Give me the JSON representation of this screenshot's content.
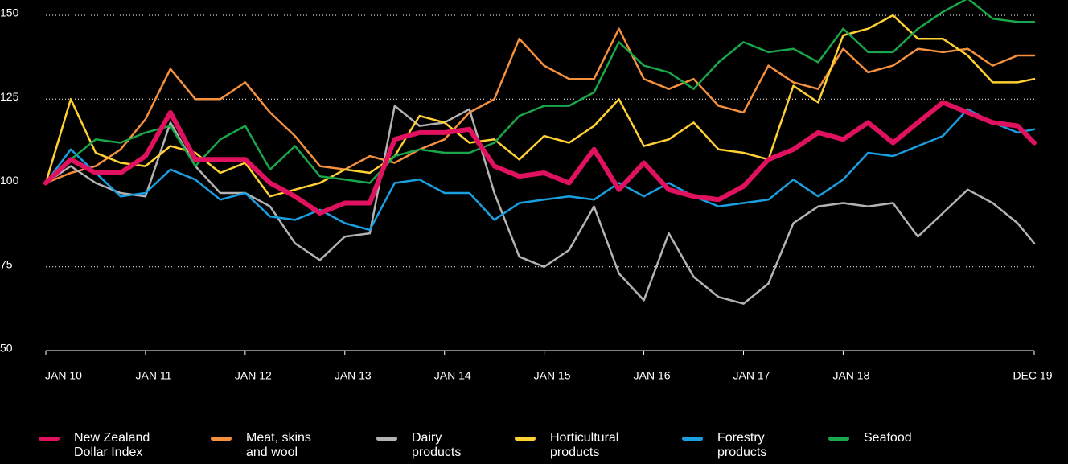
{
  "chart_data": {
    "type": "line",
    "x": [
      2010,
      2010.25,
      2010.5,
      2010.75,
      2011,
      2011.25,
      2011.5,
      2011.75,
      2012,
      2012.25,
      2012.5,
      2012.75,
      2013,
      2013.25,
      2013.5,
      2013.75,
      2014,
      2014.25,
      2014.5,
      2014.75,
      2015,
      2015.25,
      2015.5,
      2015.75,
      2016,
      2016.25,
      2016.5,
      2016.75,
      2017,
      2017.25,
      2017.5,
      2017.75,
      2018,
      2018.25,
      2018.5,
      2018.75,
      2019,
      2019.25,
      2019.5,
      2019.75,
      2019.917
    ],
    "xlim": [
      2010,
      2019.917
    ],
    "xticks": [
      {
        "value": 2010,
        "label": "JAN 10"
      },
      {
        "value": 2011,
        "label": "JAN 11"
      },
      {
        "value": 2012,
        "label": "JAN 12"
      },
      {
        "value": 2013,
        "label": "JAN 13"
      },
      {
        "value": 2014,
        "label": "JAN 14"
      },
      {
        "value": 2015,
        "label": "JAN 15"
      },
      {
        "value": 2016,
        "label": "JAN 16"
      },
      {
        "value": 2017,
        "label": "JAN 17"
      },
      {
        "value": 2018,
        "label": "JAN 18"
      },
      {
        "value": 2019.917,
        "label": "DEC 19"
      }
    ],
    "ylim": [
      50,
      150
    ],
    "yticks": [
      50,
      75,
      100,
      125,
      150
    ],
    "grid": true,
    "series": [
      {
        "name": "Meat, skins and wool",
        "color": "#f5913e",
        "values": [
          100,
          103,
          105,
          110,
          119,
          134,
          125,
          125,
          130,
          121,
          114,
          105,
          104,
          108,
          106,
          110,
          113,
          121,
          125,
          143,
          135,
          131,
          131,
          146,
          131,
          128,
          131,
          123,
          121,
          135,
          130,
          128,
          140,
          133,
          135,
          140,
          139,
          140,
          135,
          138,
          138
        ]
      },
      {
        "name": "Dairy products",
        "color": "#b3b3b3",
        "values": [
          100,
          105,
          100,
          97,
          96,
          118,
          105,
          97,
          97,
          93,
          82,
          77,
          84,
          85,
          123,
          117,
          118,
          122,
          97,
          78,
          75,
          80,
          93,
          73,
          65,
          85,
          72,
          66,
          64,
          70,
          88,
          93,
          94,
          93,
          94,
          84,
          91,
          98,
          94,
          88,
          82
        ]
      },
      {
        "name": "Horticultural products",
        "color": "#ffd133",
        "values": [
          100,
          125,
          109,
          106,
          105,
          111,
          109,
          103,
          106,
          96,
          98,
          100,
          104,
          103,
          108,
          120,
          118,
          112,
          113,
          107,
          114,
          112,
          117,
          125,
          111,
          113,
          118,
          110,
          109,
          107,
          129,
          124,
          144,
          146,
          150,
          143,
          143,
          138,
          130,
          130,
          131
        ]
      },
      {
        "name": "Forestry products",
        "color": "#1a9fe0",
        "values": [
          100,
          110,
          103,
          96,
          97,
          104,
          101,
          95,
          97,
          90,
          89,
          92,
          88,
          86,
          100,
          101,
          97,
          97,
          89,
          94,
          95,
          96,
          95,
          100,
          96,
          100,
          96,
          93,
          94,
          95,
          101,
          96,
          101,
          109,
          108,
          111,
          114,
          122,
          118,
          115,
          116
        ]
      },
      {
        "name": "Seafood",
        "color": "#1aa64a",
        "values": [
          100,
          107,
          113,
          112,
          115,
          117,
          105,
          113,
          117,
          104,
          111,
          102,
          101,
          100,
          108,
          110,
          109,
          109,
          112,
          120,
          123,
          123,
          127,
          142,
          135,
          133,
          128,
          136,
          142,
          139,
          140,
          136,
          146,
          139,
          139,
          146,
          151,
          155,
          149,
          148,
          148
        ]
      },
      {
        "name": "New Zealand Dollar Index",
        "color": "#e0115f",
        "values": [
          100,
          107,
          103,
          103,
          108,
          121,
          107,
          107,
          107,
          100,
          96,
          91,
          94,
          94,
          113,
          115,
          115,
          116,
          105,
          102,
          103,
          100,
          110,
          98,
          106,
          98,
          96,
          95,
          99,
          107,
          110,
          115,
          113,
          118,
          112,
          118,
          124,
          121,
          118,
          117,
          112
        ]
      }
    ]
  }
}
